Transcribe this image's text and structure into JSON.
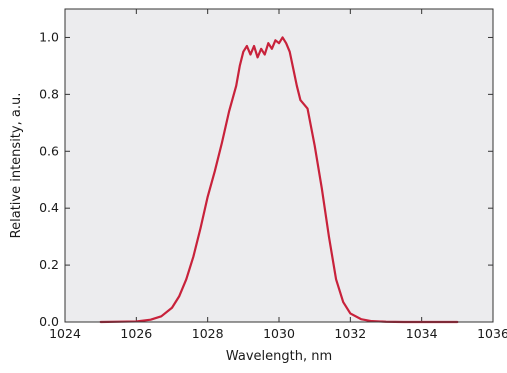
{
  "chart_data": {
    "type": "line",
    "title": "",
    "xlabel": "Wavelength, nm",
    "ylabel": "Relative intensity, a.u.",
    "xlim": [
      1024,
      1036
    ],
    "ylim": [
      0,
      1.1
    ],
    "x_ticks": [
      1024,
      1026,
      1028,
      1030,
      1032,
      1034,
      1036
    ],
    "y_ticks": [
      0.0,
      0.2,
      0.4,
      0.6,
      0.8,
      1.0
    ],
    "x_tick_labels": [
      "1024",
      "1026",
      "1028",
      "1030",
      "1032",
      "1034",
      "1036"
    ],
    "y_tick_labels": [
      "0.0",
      "0.2",
      "0.4",
      "0.6",
      "0.8",
      "1.0"
    ],
    "grid": false,
    "colors": {
      "plot_background": "#ececee",
      "line": "#c8223b",
      "axis": "#333333"
    },
    "series": [
      {
        "x": [
          1025.0,
          1026.0,
          1026.4,
          1026.7,
          1027.0,
          1027.2,
          1027.4,
          1027.6,
          1027.8,
          1028.0,
          1028.2,
          1028.4,
          1028.6,
          1028.8,
          1028.9,
          1029.0,
          1029.1,
          1029.2,
          1029.3,
          1029.4,
          1029.5,
          1029.6,
          1029.7,
          1029.8,
          1029.9,
          1030.0,
          1030.1,
          1030.2,
          1030.3,
          1030.4,
          1030.5,
          1030.6,
          1030.8,
          1031.0,
          1031.2,
          1031.4,
          1031.6,
          1031.8,
          1032.0,
          1032.3,
          1032.6,
          1033.0,
          1033.5,
          1035.0
        ],
        "y": [
          0.0,
          0.002,
          0.008,
          0.02,
          0.05,
          0.09,
          0.15,
          0.23,
          0.33,
          0.44,
          0.53,
          0.63,
          0.74,
          0.83,
          0.9,
          0.95,
          0.97,
          0.94,
          0.97,
          0.93,
          0.96,
          0.94,
          0.98,
          0.96,
          0.99,
          0.98,
          1.0,
          0.98,
          0.95,
          0.89,
          0.83,
          0.78,
          0.75,
          0.62,
          0.47,
          0.3,
          0.15,
          0.07,
          0.03,
          0.01,
          0.003,
          0.001,
          0.0,
          0.0
        ]
      }
    ]
  }
}
